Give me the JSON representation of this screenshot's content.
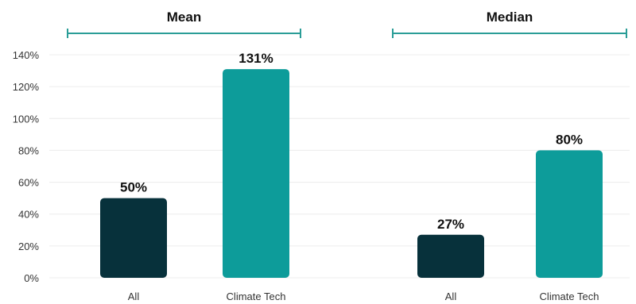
{
  "chart_data": {
    "type": "bar",
    "y_ticks": [
      "0%",
      "20%",
      "40%",
      "60%",
      "80%",
      "100%",
      "120%",
      "140%"
    ],
    "ylim": [
      0,
      140
    ],
    "grid": true,
    "groups": [
      {
        "title": "Mean",
        "categories": [
          "All",
          "Climate Tech"
        ],
        "values": [
          50,
          131
        ],
        "labels": [
          "50%",
          "131%"
        ]
      },
      {
        "title": "Median",
        "categories": [
          "All",
          "Climate Tech"
        ],
        "values": [
          27,
          80
        ],
        "labels": [
          "27%",
          "80%"
        ]
      }
    ],
    "colors": {
      "all": "#07313b",
      "climate_tech": "#0d9c9a",
      "bracket": "#2a9d97"
    }
  }
}
